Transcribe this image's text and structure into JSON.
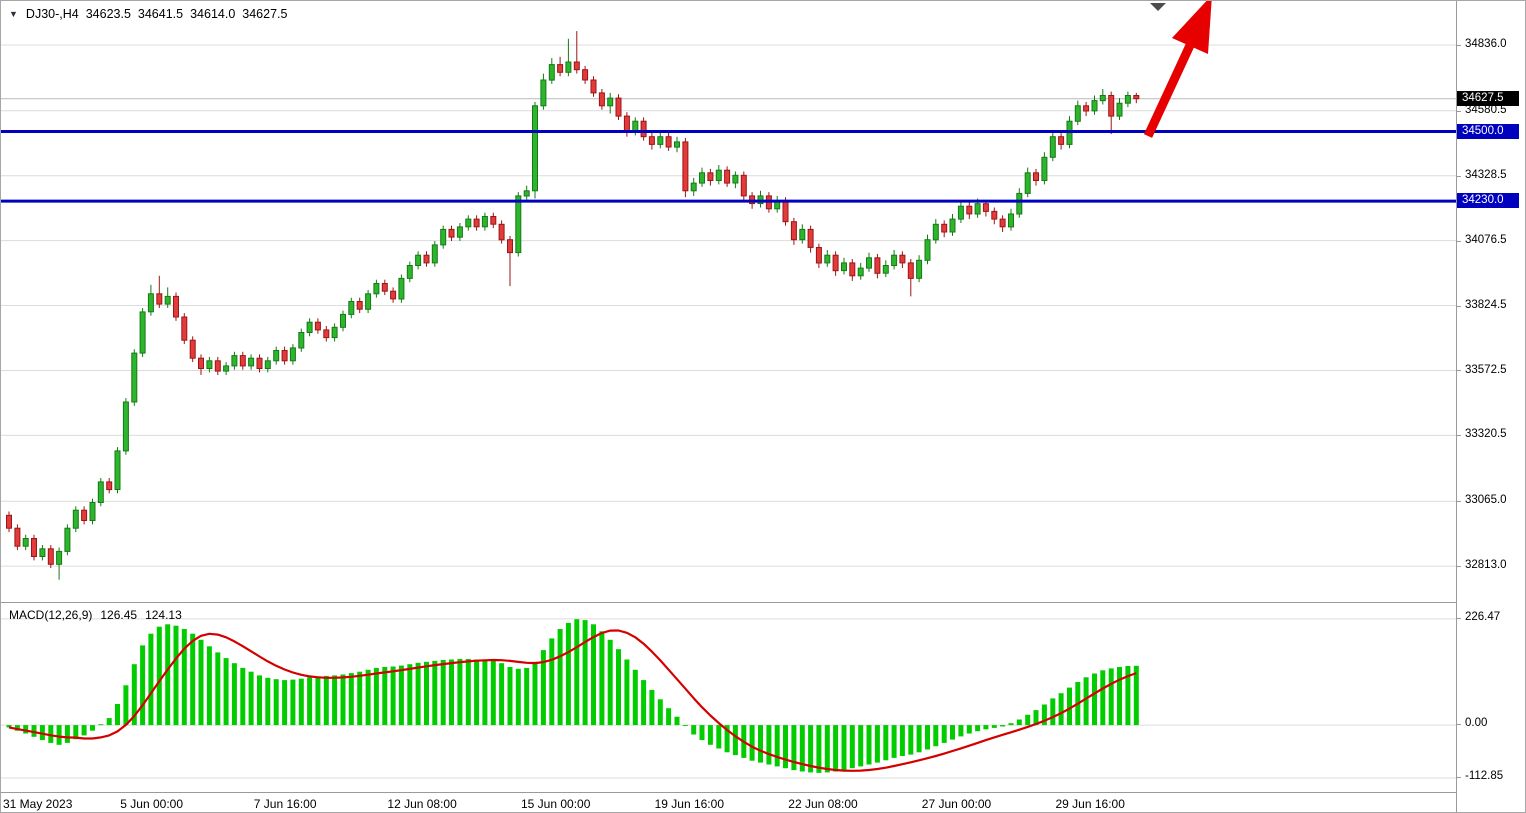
{
  "header": {
    "symbol_period": "DJ30-,H4",
    "open": "34623.5",
    "high": "34641.5",
    "low": "34614.0",
    "close": "34627.5"
  },
  "macd_panel": {
    "label": "MACD(12,26,9)",
    "macd_value": "126.45",
    "signal_value": "124.13"
  },
  "colors": {
    "candle_up_fill": "#2eb52e",
    "candle_up_stroke": "#157a15",
    "candle_down_fill": "#e23b3b",
    "candle_down_stroke": "#9c1515",
    "macd_histogram": "#00cc00",
    "macd_signal": "#d40000",
    "level_line": "#0000bf",
    "current_price_bg": "#000000",
    "level_label_bg": "#0000bf",
    "trend_arrow": "#e60000",
    "grid": "#dcdcdc"
  },
  "chart_data": [
    {
      "type": "candlestick",
      "title": "DJ30-,H4",
      "symbol": "DJ30-",
      "timeframe": "H4",
      "current_price": 34627.5,
      "current_price_label": "34627.5",
      "y_axis": {
        "ticks": [
          34836.0,
          34580.5,
          34328.5,
          34076.5,
          33824.5,
          33572.5,
          33320.5,
          33065.0,
          32813.0
        ],
        "tick_labels": [
          "34836.0",
          "34580.5",
          "34328.5",
          "34076.5",
          "33824.5",
          "33572.5",
          "33320.5",
          "33065.0",
          "32813.0"
        ]
      },
      "h_lines": [
        {
          "price": 34500.0,
          "label": "34500.0"
        },
        {
          "price": 34230.0,
          "label": "34230.0"
        }
      ],
      "x_labels": [
        {
          "i": 0,
          "label": "31 May 2023"
        },
        {
          "i": 15,
          "label": "5 Jun 00:00"
        },
        {
          "i": 31,
          "label": "7 Jun 16:00"
        },
        {
          "i": 47,
          "label": "12 Jun 08:00"
        },
        {
          "i": 63,
          "label": "15 Jun 00:00"
        },
        {
          "i": 79,
          "label": "19 Jun 16:00"
        },
        {
          "i": 95,
          "label": "22 Jun 08:00"
        },
        {
          "i": 111,
          "label": "27 Jun 00:00"
        },
        {
          "i": 127,
          "label": "29 Jun 16:00"
        }
      ],
      "open": [
        33010,
        32960,
        32890,
        32920,
        32850,
        32880,
        32820,
        32870,
        32960,
        33030,
        32990,
        33060,
        33140,
        33110,
        33260,
        33450,
        33640,
        33800,
        33870,
        33830,
        33860,
        33780,
        33690,
        33620,
        33580,
        33610,
        33570,
        33590,
        33630,
        33590,
        33620,
        33580,
        33610,
        33650,
        33610,
        33660,
        33720,
        33760,
        33730,
        33700,
        33740,
        33790,
        33840,
        33810,
        33870,
        33910,
        33880,
        33850,
        33930,
        33980,
        34020,
        33990,
        34060,
        34120,
        34090,
        34130,
        34160,
        34130,
        34170,
        34140,
        34080,
        34030,
        34250,
        34270,
        34600,
        34700,
        34760,
        34730,
        34770,
        34740,
        34700,
        34650,
        34600,
        34630,
        34560,
        34500,
        34540,
        34480,
        34450,
        34480,
        34440,
        34460,
        34270,
        34300,
        34340,
        34310,
        34350,
        34300,
        34330,
        34250,
        34220,
        34250,
        34200,
        34230,
        34150,
        34080,
        34120,
        34050,
        33990,
        34020,
        33960,
        33990,
        33940,
        33970,
        34010,
        33950,
        33980,
        34020,
        33990,
        33930,
        34000,
        34080,
        34140,
        34110,
        34160,
        34210,
        34180,
        34220,
        34190,
        34160,
        34130,
        34180,
        34260,
        34340,
        34310,
        34400,
        34480,
        34450,
        34540,
        34600,
        34580,
        34620,
        34640,
        34560,
        34610,
        34640
      ],
      "high": [
        33025,
        32975,
        32935,
        32935,
        32895,
        32895,
        32885,
        32975,
        33045,
        33045,
        33075,
        33155,
        33155,
        33275,
        33465,
        33655,
        33815,
        33905,
        33940,
        33895,
        33875,
        33795,
        33705,
        33635,
        33625,
        33625,
        33605,
        33645,
        33645,
        33635,
        33635,
        33625,
        33665,
        33665,
        33675,
        33735,
        33775,
        33775,
        33745,
        33755,
        33805,
        33855,
        33855,
        33885,
        33925,
        33925,
        33895,
        33945,
        33995,
        34035,
        34035,
        34075,
        34135,
        34135,
        34145,
        34175,
        34175,
        34185,
        34185,
        34155,
        34095,
        34265,
        34290,
        34615,
        34725,
        34785,
        34790,
        34860,
        34890,
        34755,
        34715,
        34665,
        34650,
        34645,
        34575,
        34555,
        34555,
        34495,
        34500,
        34495,
        34480,
        34475,
        34320,
        34360,
        34355,
        34370,
        34365,
        34345,
        34345,
        34265,
        34270,
        34265,
        34250,
        34245,
        34165,
        34140,
        34135,
        34065,
        34040,
        34035,
        34010,
        34005,
        33990,
        34030,
        34025,
        34000,
        34040,
        34035,
        34005,
        34020,
        34100,
        34160,
        34155,
        34180,
        34230,
        34225,
        34240,
        34235,
        34205,
        34175,
        34200,
        34280,
        34360,
        34355,
        34420,
        34500,
        34495,
        34560,
        34620,
        34615,
        34640,
        34665,
        34655,
        34630,
        34655,
        34650
      ],
      "low": [
        32945,
        32875,
        32875,
        32835,
        32835,
        32805,
        32760,
        32855,
        32945,
        32975,
        32975,
        33045,
        33095,
        33095,
        33245,
        33435,
        33625,
        33785,
        33815,
        33815,
        33765,
        33675,
        33605,
        33555,
        33565,
        33555,
        33555,
        33575,
        33575,
        33575,
        33565,
        33565,
        33595,
        33595,
        33595,
        33645,
        33705,
        33715,
        33685,
        33685,
        33725,
        33775,
        33795,
        33795,
        33855,
        33865,
        33835,
        33835,
        33915,
        33965,
        33975,
        33975,
        34045,
        34075,
        34075,
        34115,
        34115,
        34115,
        34125,
        34065,
        33900,
        34015,
        34235,
        34240,
        34585,
        34685,
        34715,
        34715,
        34725,
        34685,
        34635,
        34585,
        34570,
        34545,
        34480,
        34485,
        34465,
        34430,
        34435,
        34425,
        34420,
        34245,
        34250,
        34285,
        34290,
        34295,
        34285,
        34280,
        34230,
        34200,
        34205,
        34185,
        34185,
        34135,
        34060,
        34065,
        34030,
        33970,
        33975,
        33940,
        33945,
        33920,
        33925,
        33955,
        33930,
        33935,
        33965,
        33970,
        33860,
        33915,
        33985,
        34065,
        34090,
        34095,
        34145,
        34160,
        34165,
        34170,
        34140,
        34110,
        34115,
        34165,
        34245,
        34290,
        34295,
        34385,
        34430,
        34435,
        34525,
        34560,
        34565,
        34605,
        34490,
        34545,
        34595,
        34610
      ],
      "close": [
        32960,
        32890,
        32920,
        32850,
        32880,
        32820,
        32870,
        32960,
        33030,
        32990,
        33060,
        33140,
        33110,
        33260,
        33450,
        33640,
        33800,
        33870,
        33830,
        33860,
        33780,
        33690,
        33620,
        33580,
        33610,
        33570,
        33590,
        33630,
        33590,
        33620,
        33580,
        33610,
        33650,
        33610,
        33660,
        33720,
        33760,
        33730,
        33700,
        33740,
        33790,
        33840,
        33810,
        33870,
        33910,
        33880,
        33850,
        33930,
        33980,
        34020,
        33990,
        34060,
        34120,
        34090,
        34130,
        34160,
        34130,
        34170,
        34140,
        34080,
        34030,
        34250,
        34270,
        34600,
        34700,
        34760,
        34730,
        34770,
        34740,
        34700,
        34650,
        34600,
        34630,
        34560,
        34500,
        34540,
        34480,
        34450,
        34480,
        34440,
        34460,
        34270,
        34300,
        34340,
        34310,
        34350,
        34300,
        34330,
        34250,
        34220,
        34250,
        34200,
        34230,
        34150,
        34080,
        34120,
        34050,
        33990,
        34020,
        33960,
        33990,
        33940,
        33970,
        34010,
        33950,
        33980,
        34020,
        33990,
        33930,
        34000,
        34080,
        34140,
        34110,
        34160,
        34210,
        34180,
        34220,
        34190,
        34160,
        34130,
        34180,
        34260,
        34340,
        34310,
        34400,
        34480,
        34450,
        34540,
        34600,
        34580,
        34620,
        34640,
        34560,
        34610,
        34640,
        34627.5
      ]
    },
    {
      "type": "bar+line",
      "name": "MACD(12,26,9)",
      "signal_period": 9,
      "last_macd": 126.45,
      "last_signal": 124.13,
      "axis": {
        "ticks": [
          226.47,
          0,
          -112.85
        ],
        "tick_labels": [
          "226.47",
          "0.00",
          "-112.85"
        ]
      },
      "values": [
        -5,
        -12,
        -18,
        -25,
        -32,
        -38,
        -42,
        -38,
        -30,
        -22,
        -12,
        2,
        15,
        45,
        85,
        130,
        170,
        195,
        210,
        215,
        212,
        205,
        195,
        182,
        168,
        155,
        143,
        132,
        122,
        114,
        106,
        101,
        98,
        96,
        97,
        99,
        102,
        104,
        105,
        106,
        108,
        111,
        114,
        118,
        122,
        124,
        125,
        127,
        130,
        133,
        135,
        137,
        139,
        140,
        141,
        141,
        140,
        139,
        137,
        132,
        124,
        120,
        122,
        135,
        160,
        185,
        205,
        218,
        226,
        224,
        215,
        200,
        182,
        162,
        140,
        118,
        96,
        75,
        55,
        36,
        18,
        -2,
        -20,
        -32,
        -42,
        -50,
        -58,
        -64,
        -70,
        -76,
        -80,
        -84,
        -88,
        -92,
        -96,
        -99,
        -101,
        -102,
        -101,
        -99,
        -96,
        -92,
        -88,
        -84,
        -80,
        -75,
        -70,
        -66,
        -63,
        -58,
        -52,
        -45,
        -38,
        -31,
        -24,
        -18,
        -13,
        -9,
        -6,
        -3,
        4,
        12,
        22,
        32,
        44,
        57,
        68,
        80,
        92,
        102,
        110,
        117,
        121,
        124,
        126,
        126.45
      ]
    }
  ]
}
